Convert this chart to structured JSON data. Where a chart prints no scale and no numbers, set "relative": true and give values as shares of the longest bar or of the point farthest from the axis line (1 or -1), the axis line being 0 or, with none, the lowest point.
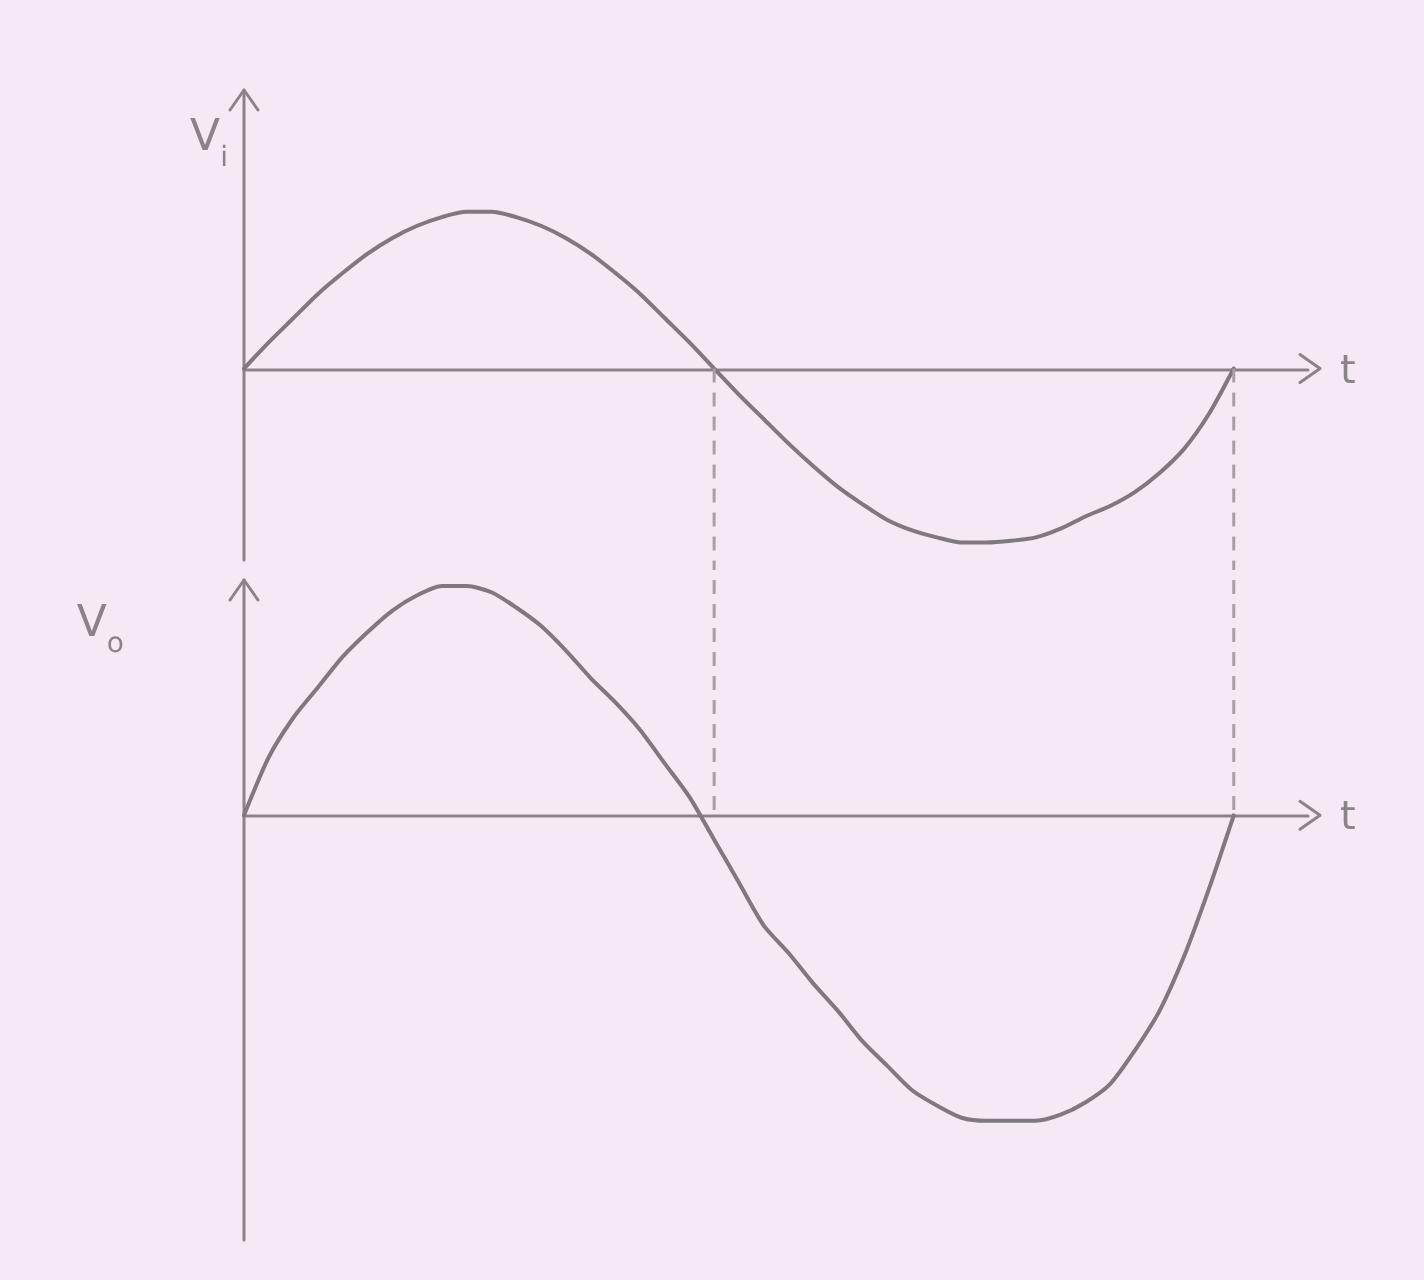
{
  "chart_data": [
    {
      "type": "line",
      "ylabel": "V$_{i}$",
      "xlabel": "t",
      "relative": true,
      "categories": [
        null,
        null,
        null,
        null,
        null,
        null,
        null,
        null,
        null,
        null,
        null,
        null,
        null,
        null,
        null,
        null,
        null,
        null,
        null,
        null,
        null,
        null,
        null,
        null,
        null,
        null,
        null,
        null,
        null,
        null,
        null,
        null,
        null,
        null,
        null,
        null,
        null,
        null,
        null,
        null,
        null,
        null,
        null,
        null
      ],
      "color": "#7f787f",
      "values": [
        0,
        0.15,
        0.29,
        0.43,
        0.55,
        0.66,
        0.75,
        0.82,
        0.87,
        0.9,
        0.9,
        0.87,
        0.82,
        0.75,
        0.66,
        0.55,
        0.43,
        0.29,
        0.15,
        0,
        -0.15,
        -0.29,
        -0.43,
        -0.56,
        -0.68,
        -0.78,
        -0.87,
        -0.93,
        -0.97,
        -1,
        -1,
        -0.99,
        -0.97,
        -0.92,
        -0.85,
        -0.79,
        -0.71,
        -0.6,
        -0.46,
        -0.26,
        0,
        null,
        null,
        null
      ]
    },
    {
      "type": "line",
      "ylabel": "V$_{o}$",
      "xlabel": "t",
      "relative": true,
      "categories": [
        null,
        null,
        null,
        null,
        null,
        null,
        null,
        null,
        null,
        null,
        null,
        null,
        null,
        null,
        null,
        null,
        null,
        null,
        null,
        null,
        null,
        null,
        null,
        null,
        null,
        null,
        null,
        null,
        null,
        null,
        null,
        null,
        null,
        null,
        null,
        null,
        null,
        null,
        null,
        null,
        null,
        null,
        null,
        null
      ],
      "color": "#7f787f",
      "values": [
        0,
        0.19,
        0.32,
        0.42,
        0.52,
        0.6,
        0.67,
        0.72,
        0.75,
        0.75,
        0.73,
        0.68,
        0.62,
        0.54,
        0.45,
        0.37,
        0.28,
        0.17,
        0.06,
        -0.08,
        -0.22,
        -0.36,
        -0.45,
        -0.55,
        -0.64,
        -0.74,
        -0.82,
        -0.9,
        -0.95,
        -0.99,
        -1,
        -1,
        -1,
        -0.98,
        -0.94,
        -0.88,
        -0.77,
        -0.64,
        -0.46,
        -0.24,
        0,
        null,
        null,
        null
      ]
    }
  ]
}
